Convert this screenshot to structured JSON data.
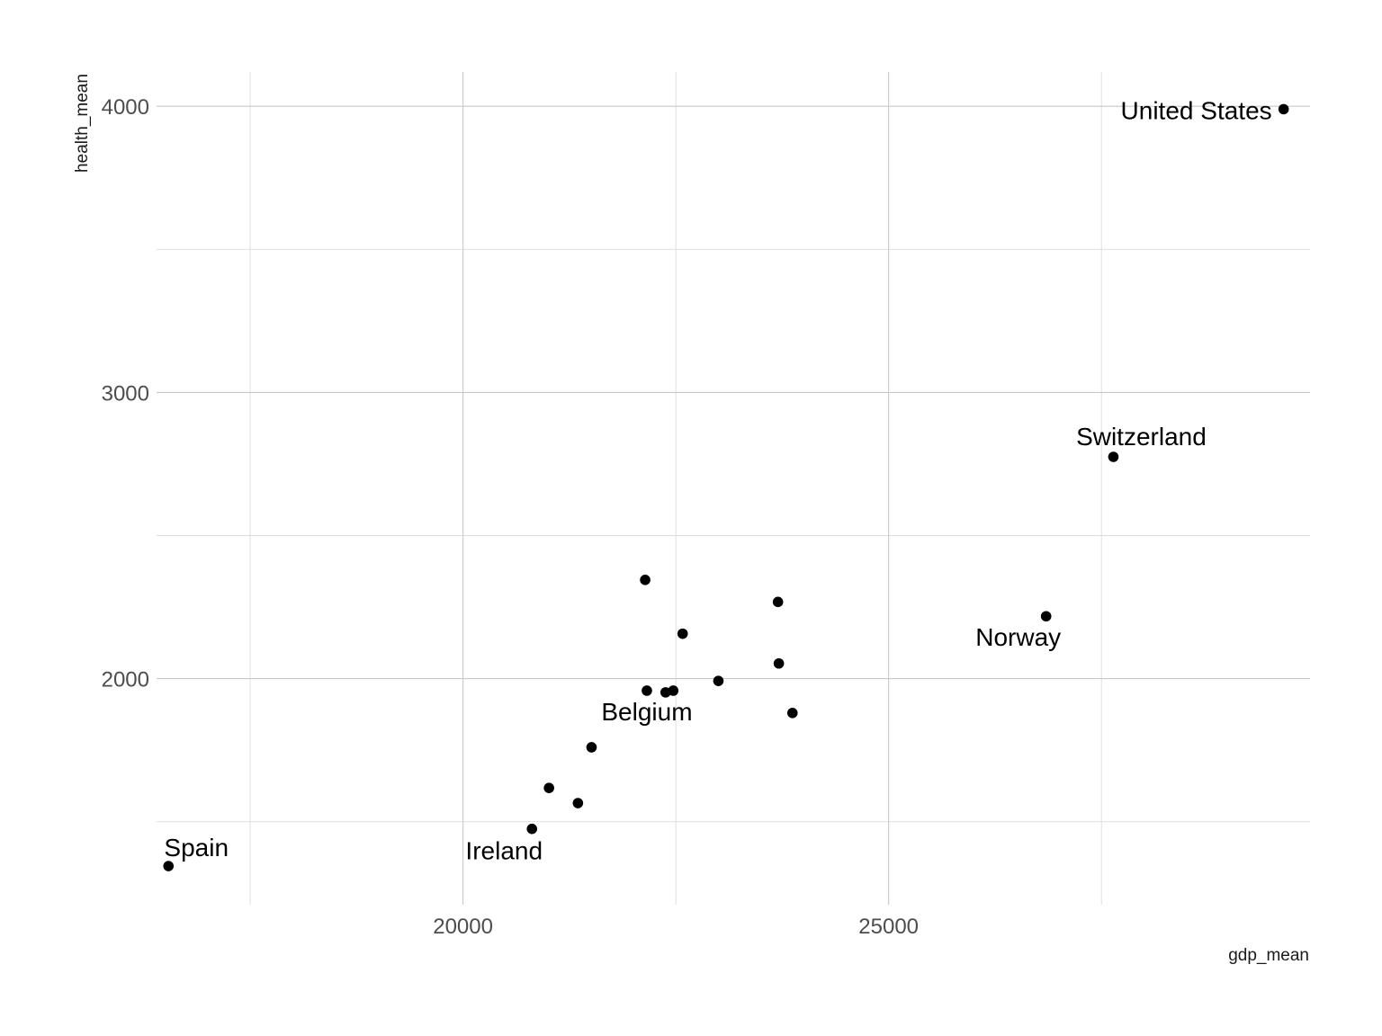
{
  "chart_data": {
    "type": "scatter",
    "title": "",
    "xlabel": "gdp_mean",
    "ylabel": "health_mean",
    "xlim": [
      16400,
      29950
    ],
    "ylim": [
      1210,
      4120
    ],
    "x_ticks": [
      20000,
      25000
    ],
    "x_minor_ticks": [
      17500,
      22500,
      27500
    ],
    "y_ticks": [
      2000,
      3000,
      4000
    ],
    "y_minor_ticks": [
      1500,
      2500,
      3500
    ],
    "grid": true,
    "legend": "none",
    "point_color": "#000000",
    "points": [
      {
        "x": 29640,
        "y": 3990,
        "label": "United States"
      },
      {
        "x": 27640,
        "y": 2775,
        "label": "Switzerland"
      },
      {
        "x": 26850,
        "y": 2218,
        "label": "Norway"
      },
      {
        "x": 22160,
        "y": 1958,
        "label": "Belgium"
      },
      {
        "x": 20810,
        "y": 1475,
        "label": "Ireland"
      },
      {
        "x": 16540,
        "y": 1345,
        "label": "Spain"
      },
      {
        "x": 22140,
        "y": 2345,
        "label": ""
      },
      {
        "x": 23700,
        "y": 2268,
        "label": ""
      },
      {
        "x": 22580,
        "y": 2157,
        "label": ""
      },
      {
        "x": 23710,
        "y": 2053,
        "label": ""
      },
      {
        "x": 23000,
        "y": 1992,
        "label": ""
      },
      {
        "x": 22380,
        "y": 1952,
        "label": ""
      },
      {
        "x": 22470,
        "y": 1958,
        "label": ""
      },
      {
        "x": 23870,
        "y": 1880,
        "label": ""
      },
      {
        "x": 21510,
        "y": 1760,
        "label": ""
      },
      {
        "x": 21010,
        "y": 1618,
        "label": ""
      },
      {
        "x": 21350,
        "y": 1565,
        "label": ""
      }
    ]
  }
}
